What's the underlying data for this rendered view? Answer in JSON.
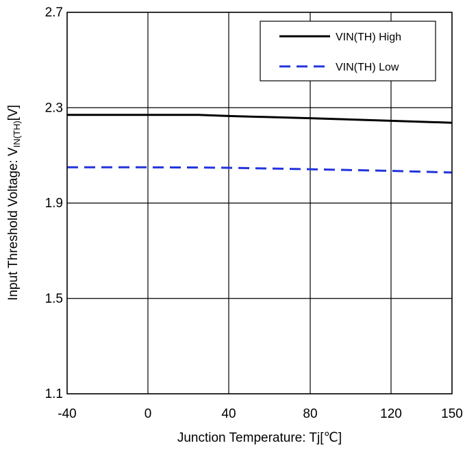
{
  "chart_data": {
    "type": "line",
    "x_ticks": [
      "-40",
      "0",
      "40",
      "80",
      "120",
      "150"
    ],
    "y_ticks": [
      "2.7",
      "2.3",
      "1.9",
      "1.5",
      "1.1"
    ],
    "xlim": [
      -40,
      150
    ],
    "ylim": [
      1.1,
      2.7
    ],
    "grid": true,
    "legend_position": "top-right",
    "xlabel": "Junction Temperature: Tj[℃]",
    "ylabel": {
      "main": "Input Threshold Voltage: V",
      "sub": "IN(TH)",
      "unit": "[V]"
    },
    "series": [
      {
        "name": "VIN(TH) High",
        "color": "#000000",
        "dash": "solid",
        "x": [
          -40,
          0,
          25,
          40,
          80,
          120,
          150
        ],
        "y": [
          2.27,
          2.27,
          2.27,
          2.265,
          2.256,
          2.245,
          2.237
        ]
      },
      {
        "name": "VIN(TH) Low",
        "color": "#2233dd",
        "dash": "dashed",
        "x": [
          -40,
          0,
          25,
          40,
          80,
          120,
          150
        ],
        "y": [
          2.05,
          2.05,
          2.049,
          2.048,
          2.042,
          2.035,
          2.028
        ]
      }
    ]
  }
}
